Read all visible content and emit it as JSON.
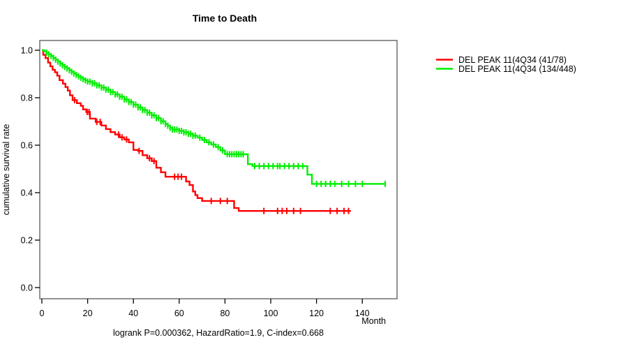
{
  "chart_data": {
    "type": "line",
    "subtype": "kaplan-meier-step",
    "title": "Time to Death",
    "xlabel": "Month",
    "ylabel": "cumulative survival rate",
    "annotation": "logrank P=0.000362, HazardRatio=1.9, C-index=0.668",
    "xlim": [
      0,
      155
    ],
    "ylim": [
      0.0,
      1.0
    ],
    "grid": false,
    "legend_position": "top-right-outside",
    "xticks": [
      0,
      20,
      40,
      60,
      80,
      100,
      120,
      140
    ],
    "xtick_labels": [
      "0",
      "20",
      "40",
      "60",
      "80",
      "100",
      "120",
      "140"
    ],
    "yticks": [
      0.0,
      0.2,
      0.4,
      0.6,
      0.8,
      1.0
    ],
    "ytick_labels": [
      "0.0",
      "0.2",
      "0.4",
      "0.6",
      "0.8",
      "1.0"
    ],
    "series": [
      {
        "name": "DEL PEAK 11(4Q34 (41/78)",
        "color": "#ff0000",
        "steps": [
          [
            0,
            1.0
          ],
          [
            0.6,
            0.981
          ],
          [
            1.6,
            0.967
          ],
          [
            2.7,
            0.948
          ],
          [
            3.7,
            0.932
          ],
          [
            4.7,
            0.918
          ],
          [
            5.7,
            0.907
          ],
          [
            6.7,
            0.893
          ],
          [
            7.7,
            0.874
          ],
          [
            9.2,
            0.859
          ],
          [
            10.3,
            0.845
          ],
          [
            11.3,
            0.83
          ],
          [
            12.3,
            0.81
          ],
          [
            13.4,
            0.79
          ],
          [
            15.3,
            0.777
          ],
          [
            17,
            0.766
          ],
          [
            18,
            0.751
          ],
          [
            19.4,
            0.74
          ],
          [
            21,
            0.712
          ],
          [
            23.5,
            0.698
          ],
          [
            26,
            0.683
          ],
          [
            28,
            0.668
          ],
          [
            30,
            0.655
          ],
          [
            32,
            0.645
          ],
          [
            34,
            0.633
          ],
          [
            36,
            0.624
          ],
          [
            38,
            0.612
          ],
          [
            40,
            0.58
          ],
          [
            42,
            0.576
          ],
          [
            44,
            0.558
          ],
          [
            46,
            0.545
          ],
          [
            48,
            0.533
          ],
          [
            50,
            0.505
          ],
          [
            52,
            0.486
          ],
          [
            54,
            0.467
          ],
          [
            63,
            0.447
          ],
          [
            64.5,
            0.432
          ],
          [
            66,
            0.405
          ],
          [
            67,
            0.39
          ],
          [
            68,
            0.377
          ],
          [
            70,
            0.365
          ],
          [
            84,
            0.335
          ],
          [
            86,
            0.323
          ],
          [
            135,
            0.323
          ]
        ],
        "censor_months": [
          14.3,
          19.8,
          20.6,
          24,
          25.5,
          33.5,
          35,
          37,
          42.5,
          47,
          49,
          58,
          59.5,
          61,
          74,
          78,
          81,
          97,
          103,
          105,
          107,
          110,
          113,
          126,
          129,
          132,
          134
        ]
      },
      {
        "name": "DEL PEAK 11(4Q34 (134/448)",
        "color": "#00ee00",
        "steps": [
          [
            0,
            1.0
          ],
          [
            1,
            0.996
          ],
          [
            2,
            0.99
          ],
          [
            3,
            0.983
          ],
          [
            4,
            0.976
          ],
          [
            5,
            0.968
          ],
          [
            6,
            0.96
          ],
          [
            7,
            0.952
          ],
          [
            8,
            0.944
          ],
          [
            9,
            0.937
          ],
          [
            10,
            0.93
          ],
          [
            11,
            0.923
          ],
          [
            12,
            0.916
          ],
          [
            13,
            0.909
          ],
          [
            14,
            0.902
          ],
          [
            15,
            0.896
          ],
          [
            16,
            0.89
          ],
          [
            17,
            0.884
          ],
          [
            18,
            0.878
          ],
          [
            19,
            0.873
          ],
          [
            20,
            0.868
          ],
          [
            22,
            0.861
          ],
          [
            24,
            0.852
          ],
          [
            26,
            0.843
          ],
          [
            28,
            0.834
          ],
          [
            30,
            0.824
          ],
          [
            32,
            0.814
          ],
          [
            34,
            0.804
          ],
          [
            36,
            0.793
          ],
          [
            38,
            0.782
          ],
          [
            40,
            0.771
          ],
          [
            42,
            0.759
          ],
          [
            44,
            0.748
          ],
          [
            46,
            0.737
          ],
          [
            48,
            0.726
          ],
          [
            50,
            0.714
          ],
          [
            52,
            0.701
          ],
          [
            54,
            0.689
          ],
          [
            55,
            0.682
          ],
          [
            56,
            0.673
          ],
          [
            57,
            0.666
          ],
          [
            60,
            0.66
          ],
          [
            62,
            0.654
          ],
          [
            64,
            0.648
          ],
          [
            66,
            0.64
          ],
          [
            68,
            0.632
          ],
          [
            70,
            0.622
          ],
          [
            72,
            0.612
          ],
          [
            74,
            0.603
          ],
          [
            76,
            0.592
          ],
          [
            78,
            0.578
          ],
          [
            80,
            0.562
          ],
          [
            90,
            0.52
          ],
          [
            92,
            0.512
          ],
          [
            116,
            0.476
          ],
          [
            118,
            0.437
          ],
          [
            150,
            0.437
          ]
        ],
        "censor_months": [
          2,
          3,
          4,
          5,
          6,
          7,
          8,
          9,
          10,
          11,
          12,
          13,
          14,
          15,
          16,
          17,
          18,
          19,
          20,
          21,
          22,
          23,
          24,
          25,
          26,
          27,
          28,
          29,
          30,
          31,
          32,
          33,
          34,
          35,
          36,
          37,
          38,
          39,
          40,
          41,
          42,
          43,
          44,
          45,
          46,
          47,
          48,
          49,
          50,
          51,
          52,
          53,
          54,
          55,
          56,
          57,
          58,
          59,
          60,
          61,
          62,
          63,
          64,
          65,
          66,
          67,
          69,
          71,
          73,
          75,
          77,
          79,
          81,
          82,
          83,
          84,
          85,
          86,
          87,
          88,
          93,
          95,
          97,
          99,
          101,
          103,
          104,
          106,
          108,
          110,
          112,
          114,
          120,
          122,
          124,
          126,
          128,
          131,
          134,
          137,
          140,
          150
        ]
      }
    ]
  }
}
